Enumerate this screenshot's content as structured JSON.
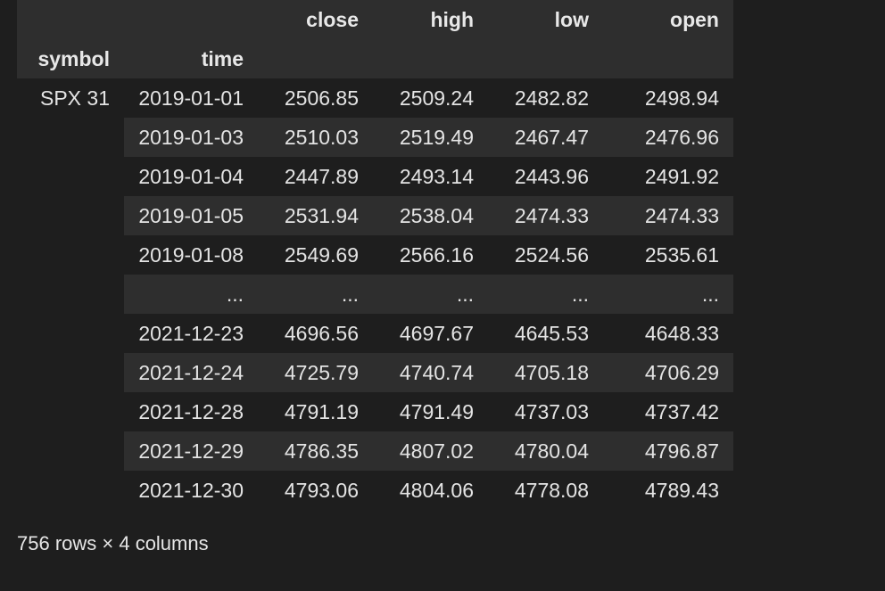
{
  "columns": [
    "close",
    "high",
    "low",
    "open"
  ],
  "index_names": [
    "symbol",
    "time"
  ],
  "symbol": "SPX 31",
  "rows": [
    {
      "time": "2019-01-01",
      "close": "2506.85",
      "high": "2509.24",
      "low": "2482.82",
      "open": "2498.94"
    },
    {
      "time": "2019-01-03",
      "close": "2510.03",
      "high": "2519.49",
      "low": "2467.47",
      "open": "2476.96"
    },
    {
      "time": "2019-01-04",
      "close": "2447.89",
      "high": "2493.14",
      "low": "2443.96",
      "open": "2491.92"
    },
    {
      "time": "2019-01-05",
      "close": "2531.94",
      "high": "2538.04",
      "low": "2474.33",
      "open": "2474.33"
    },
    {
      "time": "2019-01-08",
      "close": "2549.69",
      "high": "2566.16",
      "low": "2524.56",
      "open": "2535.61"
    },
    {
      "time": "...",
      "close": "...",
      "high": "...",
      "low": "...",
      "open": "..."
    },
    {
      "time": "2021-12-23",
      "close": "4696.56",
      "high": "4697.67",
      "low": "4645.53",
      "open": "4648.33"
    },
    {
      "time": "2021-12-24",
      "close": "4725.79",
      "high": "4740.74",
      "low": "4705.18",
      "open": "4706.29"
    },
    {
      "time": "2021-12-28",
      "close": "4791.19",
      "high": "4791.49",
      "low": "4737.03",
      "open": "4737.42"
    },
    {
      "time": "2021-12-29",
      "close": "4786.35",
      "high": "4807.02",
      "low": "4780.04",
      "open": "4796.87"
    },
    {
      "time": "2021-12-30",
      "close": "4793.06",
      "high": "4804.06",
      "low": "4778.08",
      "open": "4789.43"
    }
  ],
  "footer": "756 rows × 4 columns",
  "colors": {
    "background": "#1e1e1e",
    "stripe": "#2e2e2e",
    "text": "#e6e6e6"
  }
}
